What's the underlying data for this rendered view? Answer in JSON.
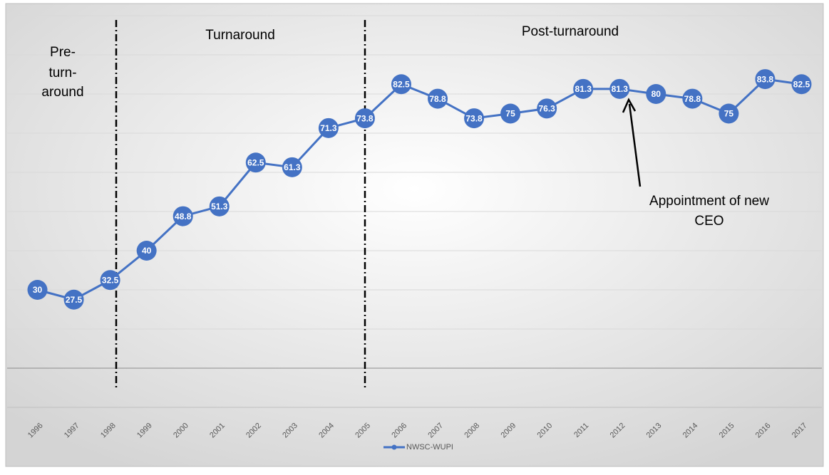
{
  "chart_data": {
    "type": "line",
    "categories": [
      "1996",
      "1997",
      "1998",
      "1999",
      "2000",
      "2001",
      "2002",
      "2003",
      "2004",
      "2005",
      "2006",
      "2007",
      "2008",
      "2009",
      "2010",
      "2011",
      "2012",
      "2013",
      "2014",
      "2015",
      "2016",
      "2017"
    ],
    "series": [
      {
        "name": "NWSC-WUPI",
        "color": "#4472c4",
        "values": [
          30,
          27.5,
          32.5,
          40,
          48.8,
          51.3,
          62.5,
          61.3,
          71.3,
          73.8,
          82.5,
          78.8,
          73.8,
          75,
          76.3,
          81.3,
          81.3,
          80,
          78.8,
          75,
          83.8,
          82.5
        ]
      }
    ],
    "ylim": [
      0,
      100
    ],
    "yticks": [
      0,
      10,
      20,
      30,
      40,
      50,
      60,
      70,
      80,
      90,
      100
    ],
    "grid": true,
    "legend": "bottom",
    "annotations": {
      "pre": [
        "Pre-",
        "turn-",
        "around"
      ],
      "turnaround": "Turnaround",
      "post": "Post-turnaround",
      "ceo": [
        "Appointment of new",
        "CEO"
      ]
    }
  }
}
